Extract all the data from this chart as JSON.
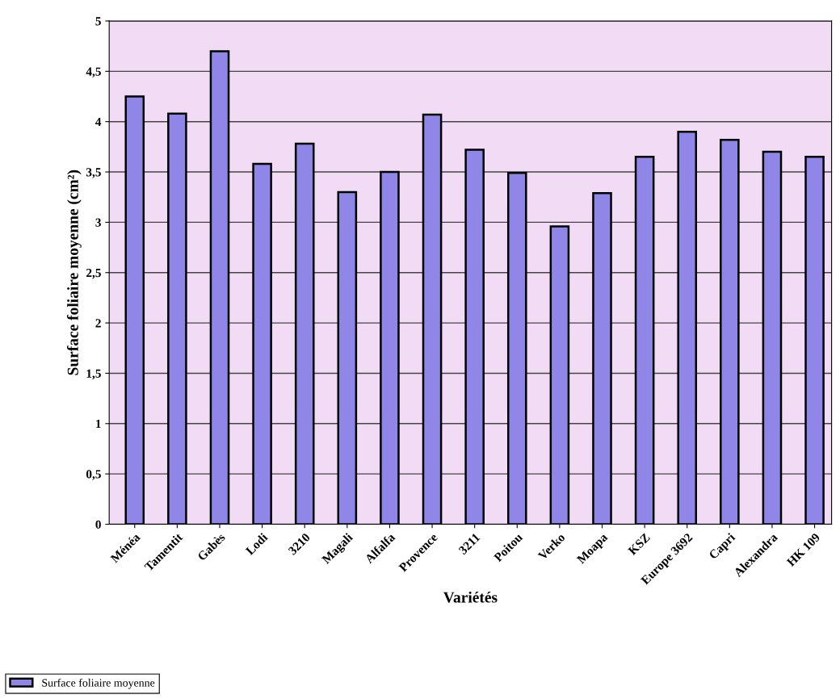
{
  "chart_data": {
    "type": "bar",
    "xlabel": "Variétés",
    "ylabel": "Surface foliaire moyenne (cm²)",
    "categories": [
      "Ménéa",
      "Tamentit",
      "Gabès",
      "Lodi",
      "3210",
      "Magali",
      "Alfalfa",
      "Provence",
      "3211",
      "Poitou",
      "Verko",
      "Moapa",
      "KSZ",
      "Europe 3692",
      "Capri",
      "Alexandra",
      "HK 109"
    ],
    "series": [
      {
        "name": "Surface foliaire moyenne",
        "color": "#8f86e8",
        "values": [
          4.25,
          4.08,
          4.7,
          3.58,
          3.78,
          3.3,
          3.5,
          4.07,
          3.72,
          3.49,
          2.96,
          3.29,
          3.65,
          3.9,
          3.82,
          3.7,
          3.65
        ]
      }
    ],
    "ylim": [
      0,
      5
    ],
    "yticks": [
      0,
      {
        "value": 0.5,
        "label": "0,5"
      },
      1,
      {
        "value": 1.5,
        "label": "1,5"
      },
      2,
      {
        "value": 2.5,
        "label": "2,5"
      },
      3,
      {
        "value": 3.5,
        "label": "3,5"
      },
      4,
      {
        "value": 4.5,
        "label": "4,5"
      },
      5
    ],
    "grid": "y",
    "legend": "bottom left"
  }
}
